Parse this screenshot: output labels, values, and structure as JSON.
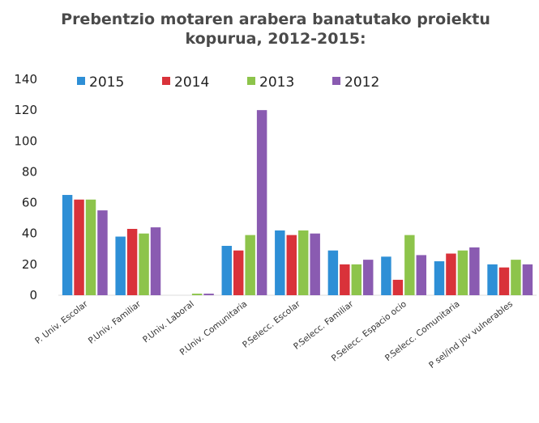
{
  "chart_data": {
    "type": "bar",
    "title": "Prebentzio motaren arabera banatutako proiektu kopurua, 2012-2015:",
    "categories": [
      "P. Univ. Escolar",
      "P.Univ. Familiar",
      "P.Univ. Laboral",
      "P.Univ. Comunitaria",
      "P.Selecc. Escolar",
      "P.Selecc. Familiar",
      "P.Selecc. Espacio ocio",
      "P.Selecc. Comunitaria",
      "P sel/ind jov vulnerables"
    ],
    "series": [
      {
        "name": "2015",
        "color": "#2e8fd6",
        "values": [
          65,
          38,
          0,
          32,
          42,
          29,
          25,
          22,
          20
        ]
      },
      {
        "name": "2014",
        "color": "#d9323a",
        "values": [
          62,
          43,
          0,
          29,
          39,
          20,
          10,
          27,
          18
        ]
      },
      {
        "name": "2013",
        "color": "#8dc44b",
        "values": [
          62,
          40,
          1,
          39,
          42,
          20,
          39,
          29,
          23
        ]
      },
      {
        "name": "2012",
        "color": "#8a5bb1",
        "values": [
          55,
          44,
          1,
          120,
          40,
          23,
          26,
          31,
          20
        ]
      }
    ],
    "ylim": [
      0,
      140
    ],
    "yticks": [
      0,
      20,
      40,
      60,
      80,
      100,
      120,
      140
    ],
    "grid": false,
    "legend": "top"
  }
}
